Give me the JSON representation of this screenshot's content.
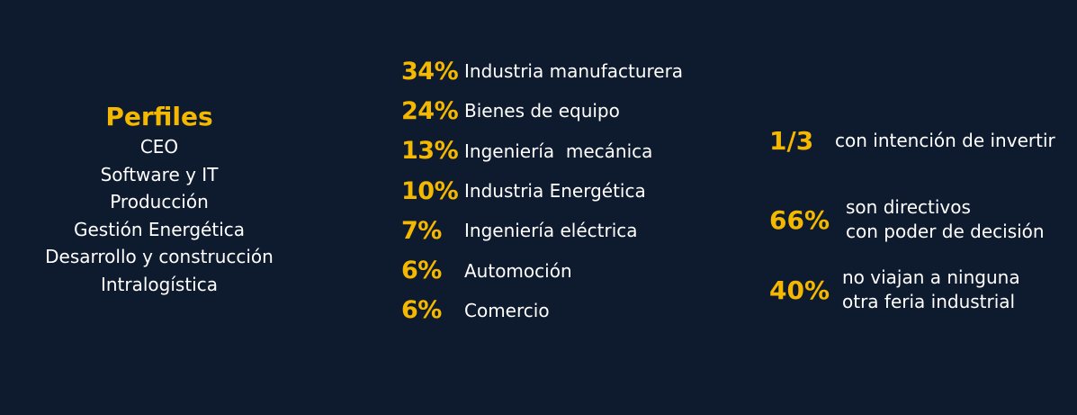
{
  "profiles": {
    "title": "Perfiles",
    "items": [
      "CEO",
      "Software y IT",
      "Producción",
      "Gestión Energética",
      "Desarrollo y construcción",
      "Intralogística"
    ]
  },
  "sectors": [
    {
      "percent": "34%",
      "label": "Industria manufacturera"
    },
    {
      "percent": "24%",
      "label": "Bienes de equipo"
    },
    {
      "percent": "13%",
      "label": "Ingeniería  mecánica"
    },
    {
      "percent": "10%",
      "label": "Industria Energética"
    },
    {
      "percent": "7%",
      "label": "Ingeniería eléctrica"
    },
    {
      "percent": "6%",
      "label": "Automoción"
    },
    {
      "percent": "6%",
      "label": "Comercio"
    }
  ],
  "stats": [
    {
      "value": "1/3",
      "lines": [
        "con intención de invertir"
      ]
    },
    {
      "value": "66%",
      "lines": [
        "son directivos",
        "con poder de decisión"
      ]
    },
    {
      "value": "40%",
      "lines": [
        "no viajan a ninguna",
        "otra feria industrial"
      ]
    }
  ],
  "colors": {
    "background": "#0e1a2e",
    "accent": "#f5b800",
    "text": "#ffffff"
  }
}
